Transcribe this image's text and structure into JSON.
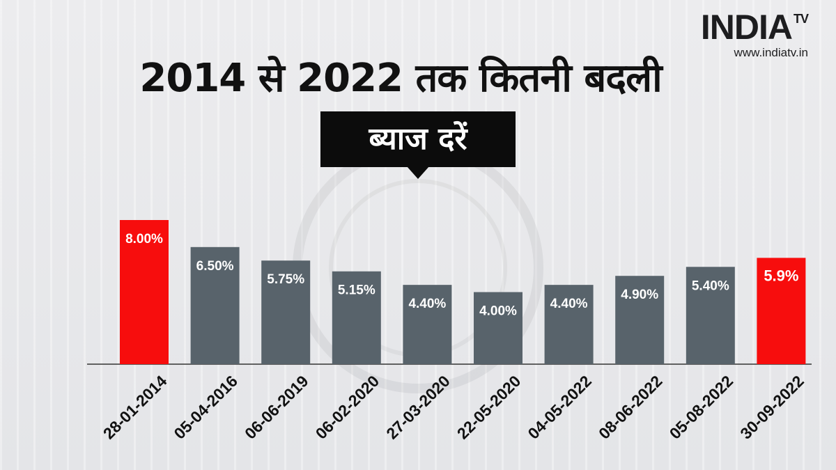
{
  "brand": {
    "name": "INDIA",
    "superscript": "TV",
    "url": "www.indiatv.in"
  },
  "chart_data": {
    "type": "bar",
    "title": "2014 से 2022 तक कितनी बदली",
    "subtitle": "ब्याज दरें",
    "categories": [
      "28-01-2014",
      "05-04-2016",
      "06-06-2019",
      "06-02-2020",
      "27-03-2020",
      "22-05-2020",
      "04-05-2022",
      "08-06-2022",
      "05-08-2022",
      "30-09-2022"
    ],
    "values": [
      8.0,
      6.5,
      5.75,
      5.15,
      4.4,
      4.0,
      4.4,
      4.9,
      5.4,
      5.9
    ],
    "data_labels": [
      "8.00%",
      "6.50%",
      "5.75%",
      "5.15%",
      "4.40%",
      "4.00%",
      "4.40%",
      "4.90%",
      "5.40%",
      "5.9%"
    ],
    "highlight_indices": [
      0,
      9
    ],
    "colors": {
      "bar": "#58636b",
      "highlight": "#f70d0d",
      "label": "#ffffff",
      "axis": "#333333",
      "tick": "#111111"
    },
    "ylim": [
      0,
      8.0
    ],
    "grid": false,
    "legend": "none"
  }
}
